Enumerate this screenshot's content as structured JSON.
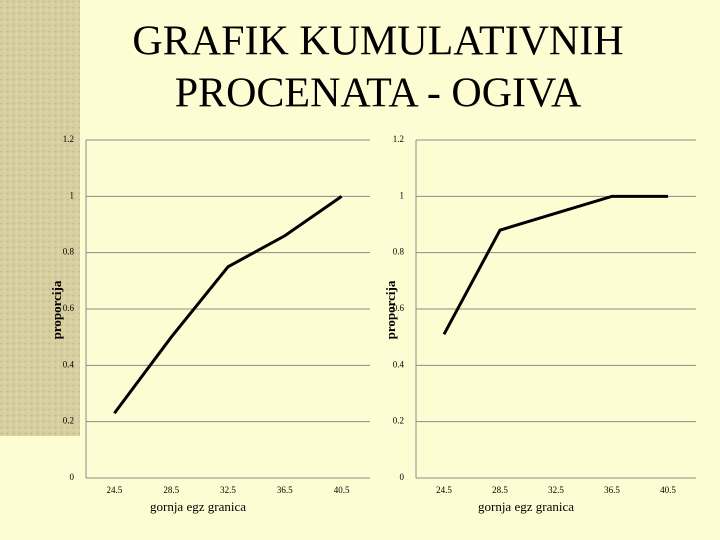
{
  "title": "GRAFIK KUMULATIVNIH PROCENATA - OGIVA",
  "chart_data": [
    {
      "type": "line",
      "x_label": "gornja egz granica",
      "y_label": "proporcija",
      "categories": [
        "24.5",
        "28.5",
        "32.5",
        "36.5",
        "40.5"
      ],
      "values": [
        0.23,
        0.5,
        0.75,
        0.86,
        1.0
      ],
      "color": "#000000",
      "ylim": [
        0,
        1.2
      ],
      "yticks": [
        0,
        0.2,
        0.4,
        0.6,
        0.8,
        1,
        1.2
      ],
      "grid": true
    },
    {
      "type": "line",
      "x_label": "gornja egz granica",
      "y_label": "proporcija",
      "categories": [
        "24.5",
        "28.5",
        "32.5",
        "36.5",
        "40.5"
      ],
      "values": [
        0.51,
        0.88,
        0.94,
        1.0,
        1.0
      ],
      "color": "#000000",
      "ylim": [
        0,
        1.2
      ],
      "yticks": [
        0,
        0.2,
        0.4,
        0.6,
        0.8,
        1,
        1.2
      ],
      "grid": true
    }
  ]
}
